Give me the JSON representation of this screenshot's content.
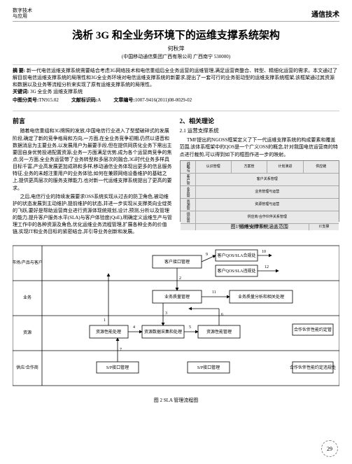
{
  "header": {
    "left_line1": "数字技术",
    "left_line2": "与应用",
    "right": "通信技术"
  },
  "title": "浅析 3G 和全业务环境下的运维支撑系统架构",
  "author": "何秋萍",
  "affiliation": "(中国移动通信集团广西有限公司  广西南宁  530000)",
  "abstract_label": "摘  要:",
  "abstract": "新一代电信运维支撑系统需要结合考虑3G网络技术和电信重组后全业务运营的运维管理,满足运营商整合、转型、精细化运营的需求。本文通过了解目前电信运维支撑系统的局限性和3G全业务环境对电信运维支撑系统的新要求,提出了一套可行的业务驱动型的运维支撑系统框架,该框架通过其资源和数据以及业务等流程分析来实现了原有运维支撑系统的局限性。",
  "keywords_label": "关键词:",
  "keywords": "3G  全业务  运维支撑系统",
  "classify": {
    "clc_label": "中图分类号:",
    "clc": "TN915.02",
    "doc_label": "文献标识码:",
    "doc": "A",
    "id_label": "文章编号:",
    "id": "1007-9416(2011)08-0029-02"
  },
  "s1": {
    "title": "前言",
    "p1": "随着电信重组和3G牌照的发放,中国电信行业进入了型塑破碎式的发展阶段,确定了新的竞争格局和方向,一方面,在全业务竞争初期,仍然以语音和数据消息为主要业务,以发展用户为最要手段,但在提供同质化业务下需出主要固自身优势投递配置资源,业务一方面满足优势,成为各个运营商竞争的焦点;另一方面,全业务运营带了业务转型和多层次的融合,3G时代业务多样具目标千富,产业高发展更加成熟和多样,移动通信业务体现出更多的信息服务特征,业务的未越注重用户的业务体验,如何在兼顾网络设备维护的基础之上,提供更高层次的服务支撑能力,也对新一代运维支撑系统提出了更高的要求。",
    "p2": "之后,电信行业的持续发展要求OSS系统实现从过去的防卫角色,被动维护的状态发展到主动维护,提前维护的状态,并进一步实现从支撑类向业绽类的飞跃,要好是帮助运营商业进行资源体现统规划,设计,预测,分析以及管理的能力,提升客户服务水平(SLA)与客户体验度(QoE),明确定义运维生产与管理工作中的各种资源及角色,优化运维业务流程管理,扩展各种业务的价值链,实现IT和业务目标的紧密结合,并引导业务创新和发展。"
  },
  "s2": {
    "title": "2、相关理论",
    "sub": "2.1 运营支撑系统",
    "p1": "TMF提出的NGOSS框架定义了下一代运维支撑系统的构成要素和覆盖范围,该体系框架中的QOS是一个广义OSS的概念,针对我国电信运营商的特点进行裁剪,可以得到如下的框图作进一步的映射。"
  },
  "fig1": {
    "caption": "图1 运维支撑系统涵盖范围",
    "rows": [
      [
        "战略与",
        "认识管理",
        "方案管",
        "计划演进",
        "供应链"
      ],
      [
        "客户管",
        "客户关系管理",
        "",
        "",
        ""
      ],
      [
        "业务管",
        "业务管理与运营",
        "",
        "",
        ""
      ],
      [
        "资源管",
        "资源管理与运营",
        "",
        "",
        ""
      ],
      [
        "供应商",
        "供应商/合作伙伴关系管理",
        "",
        "",
        ""
      ],
      [
        "",
        "供应商与合作伙伴",
        "",
        "",
        "IT支撑"
      ]
    ]
  },
  "fig2": {
    "caption": "图 2 SLA 管理流程图",
    "left_labels": [
      "市场/产品与客户",
      "业务",
      "资源",
      "供应/合作商"
    ],
    "boxes": {
      "b1": "客户接口管理",
      "b2": "客户QOS/SLA合规处",
      "b3": "客户QOS/SLA违规处",
      "b4": "业务质量管理",
      "b5": "业务质量分析和相关处理",
      "b6": "资源性能处理",
      "b7": "资源数据采集和处理",
      "b8": "资源性能管理",
      "b9": "S/P接口管理",
      "b10": "S/P接口管理",
      "b11": "合作伙伴性能约定管",
      "b12": "合作伙伴性能约定违规处"
    },
    "nums": [
      "1",
      "2",
      "3",
      "4",
      "5",
      "6",
      "7",
      "9",
      "10",
      "11",
      "12"
    ]
  },
  "page_num": "29",
  "colors": {
    "border": "#888888",
    "grid": "#aaaaaa",
    "cell_bg": "#e8e8e8",
    "page_bg": "#ffffff"
  }
}
